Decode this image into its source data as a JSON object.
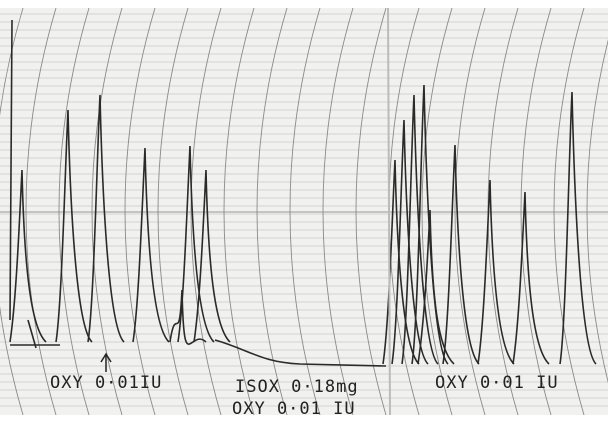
{
  "annotations": [
    {
      "label": "OXY 0·01IU"
    },
    {
      "label": "ISOX 0·18mg"
    },
    {
      "label": "OXY 0·01 IU"
    },
    {
      "label": "OXY 0·01 IU"
    }
  ]
}
